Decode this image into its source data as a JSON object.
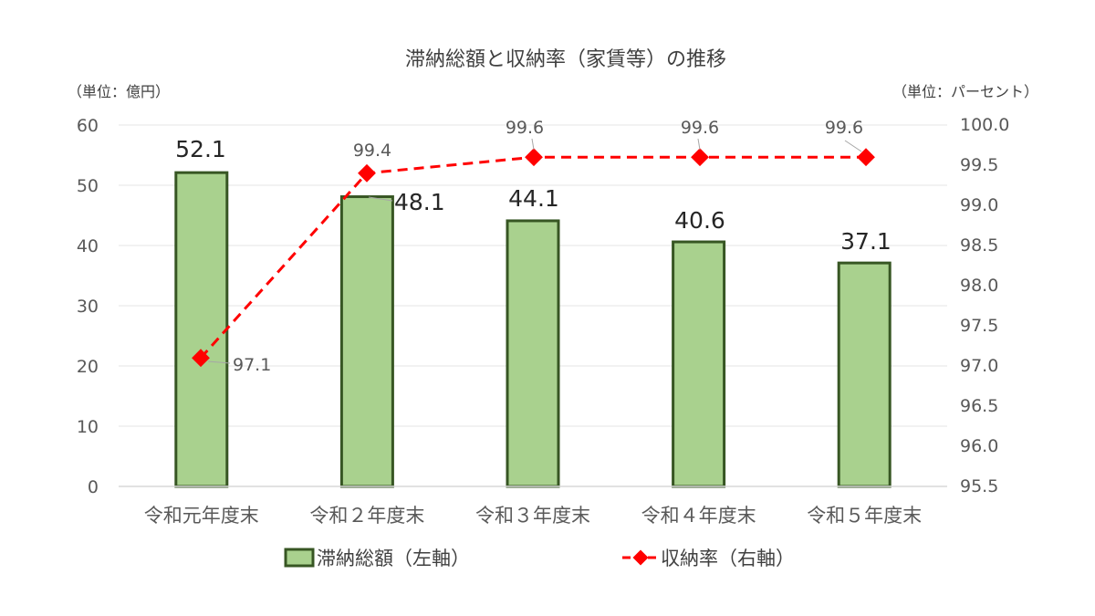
{
  "chart_data": {
    "type": "bar",
    "title": "滞納総額と収納率（家賃等）の推移",
    "left_unit": "（単位：億円）",
    "right_unit": "（単位：パーセント）",
    "categories": [
      "令和元年度末",
      "令和２年度末",
      "令和３年度末",
      "令和４年度末",
      "令和５年度末"
    ],
    "left_axis": {
      "min": 0,
      "max": 60,
      "step": 10,
      "ticks": [
        "0",
        "10",
        "20",
        "30",
        "40",
        "50",
        "60"
      ]
    },
    "right_axis": {
      "min": 95.5,
      "max": 100.0,
      "step": 0.5,
      "ticks": [
        "95.5",
        "96.0",
        "96.5",
        "97.0",
        "97.5",
        "98.0",
        "98.5",
        "99.0",
        "99.5",
        "100.0"
      ]
    },
    "grid": true,
    "legend_position": "bottom",
    "series": [
      {
        "name": "滞納総額（左軸）",
        "type": "bar",
        "axis": "left",
        "values": [
          52.1,
          48.1,
          44.1,
          40.6,
          37.1
        ],
        "labels": [
          "52.1",
          "48.1",
          "44.1",
          "40.6",
          "37.1"
        ],
        "color": "#a9d18e",
        "border": "#375623"
      },
      {
        "name": "収納率（右軸）",
        "type": "line",
        "axis": "right",
        "values": [
          97.1,
          99.4,
          99.6,
          99.6,
          99.6
        ],
        "labels": [
          "97.1",
          "99.4",
          "99.6",
          "99.6",
          "99.6"
        ],
        "color": "#ff0000"
      }
    ]
  }
}
